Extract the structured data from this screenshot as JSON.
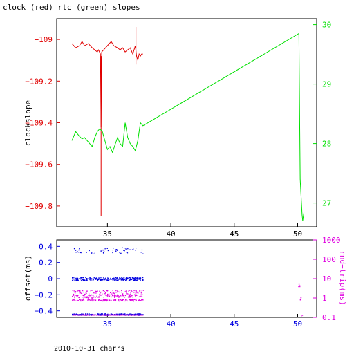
{
  "page": {
    "title": "clock (red) rtc (green) slopes",
    "footer": "2010-10-31 charrs"
  },
  "colors": {
    "clock_red": "#e00000",
    "rtc_green": "#00e000",
    "offset_blue": "#0000e0",
    "roundtrip_magenta": "#e000e0",
    "axis_black": "#000000"
  },
  "chart_data": [
    {
      "type": "line",
      "title": "clock (red) rtc (green) slopes",
      "xlabel": "",
      "ylabel": "clockslope",
      "y2label": "",
      "xlim": [
        31,
        51.5
      ],
      "ylim": [
        -109.9,
        -108.9
      ],
      "y2lim": [
        26.6,
        30.1
      ],
      "xticks": [
        35,
        40,
        45,
        50
      ],
      "yticks": [
        -109,
        -109.2,
        -109.4,
        -109.6,
        -109.8
      ],
      "yticklabels": [
        "−109",
        "−109.2",
        "−109.4",
        "−109.6",
        "−109.8"
      ],
      "y2ticks": [
        27,
        28,
        29,
        30
      ],
      "grid": false,
      "series": [
        {
          "name": "clock",
          "axis": "left",
          "x": [
            32.2,
            32.5,
            32.8,
            33.0,
            33.2,
            33.5,
            33.8,
            34.0,
            34.2,
            34.3,
            34.45,
            34.5,
            34.55,
            34.7,
            35.0,
            35.3,
            35.5,
            35.8,
            36.0,
            36.2,
            36.4,
            36.6,
            36.8,
            37.0,
            37.2,
            37.3,
            37.4,
            37.5,
            37.6,
            37.7,
            37.8
          ],
          "y": [
            -109.02,
            -109.04,
            -109.03,
            -109.01,
            -109.03,
            -109.02,
            -109.04,
            -109.05,
            -109.06,
            -109.05,
            -109.07,
            -109.42,
            -109.06,
            -109.05,
            -109.03,
            -109.01,
            -109.03,
            -109.04,
            -109.05,
            -109.04,
            -109.06,
            -109.05,
            -109.04,
            -109.07,
            -109.03,
            -109.08,
            -109.1,
            -109.07,
            -109.08,
            -109.07,
            -109.07
          ]
        },
        {
          "name": "clock-spikes",
          "axis": "left",
          "segments": [
            {
              "x": 34.5,
              "y0": -109.08,
              "y1": -109.85
            },
            {
              "x": 37.25,
              "y0": -108.94,
              "y1": -109.12
            }
          ]
        },
        {
          "name": "rtc",
          "axis": "right",
          "x": [
            32.2,
            32.5,
            32.8,
            33.0,
            33.2,
            33.4,
            33.6,
            33.8,
            34.0,
            34.2,
            34.4,
            34.6,
            34.8,
            35.0,
            35.2,
            35.4,
            35.6,
            35.8,
            36.0,
            36.2,
            36.4,
            36.6,
            36.8,
            37.0,
            37.2,
            37.4,
            37.6,
            37.8,
            50.1,
            50.2,
            50.35,
            50.4,
            50.5
          ],
          "y": [
            28.05,
            28.2,
            28.12,
            28.08,
            28.1,
            28.05,
            28.0,
            27.95,
            28.1,
            28.2,
            28.25,
            28.2,
            28.05,
            27.9,
            27.95,
            27.85,
            27.98,
            28.1,
            28.0,
            27.95,
            28.35,
            28.1,
            28.0,
            27.95,
            27.88,
            28.05,
            28.35,
            28.3,
            29.85,
            27.4,
            26.8,
            26.7,
            26.85
          ]
        }
      ]
    },
    {
      "type": "scatter",
      "title": "",
      "xlabel": "",
      "ylabel": "offset(ms)",
      "y2label": "rnd−trip(ms)",
      "xlim": [
        31,
        51.5
      ],
      "ylim": [
        -0.48,
        0.48
      ],
      "y2lim_log10": [
        -1,
        3
      ],
      "y2_scale": "log",
      "xticks": [
        35,
        40,
        45,
        50
      ],
      "yticks": [
        0.4,
        0.2,
        0,
        -0.2,
        -0.4
      ],
      "yticklabels": [
        "0.4",
        "0.2",
        "0",
        "−0.2",
        "−0.4"
      ],
      "y2ticks": [
        1000,
        100,
        10,
        1,
        0.1
      ],
      "y2ticklabels": [
        "1000",
        "100",
        "10",
        "1",
        "0.1"
      ],
      "grid": false,
      "series": [
        {
          "name": "offset",
          "axis": "left",
          "x_range": [
            32.2,
            37.8
          ],
          "bands": [
            {
              "y": 0.0,
              "spread": 0.02,
              "density": "dense"
            },
            {
              "y": 0.35,
              "spread": 0.04,
              "density": "sparse"
            },
            {
              "y": -0.44,
              "spread": 0.01,
              "density": "dense"
            }
          ]
        },
        {
          "name": "rnd-trip",
          "axis": "right",
          "x_range": [
            32.2,
            37.8
          ],
          "bands": [
            {
              "y": 2.0,
              "spread": 0.3,
              "density": "medium"
            },
            {
              "y": 1.3,
              "spread": 0.2,
              "density": "medium"
            },
            {
              "y": 0.8,
              "spread": 0.1,
              "density": "medium"
            },
            {
              "y": 0.14,
              "spread": 0.01,
              "density": "dense"
            }
          ],
          "late_points": [
            {
              "x": 50.1,
              "y": 5.0
            },
            {
              "x": 50.2,
              "y": 1.0
            },
            {
              "x": 50.3,
              "y": 0.14
            }
          ]
        }
      ]
    }
  ]
}
